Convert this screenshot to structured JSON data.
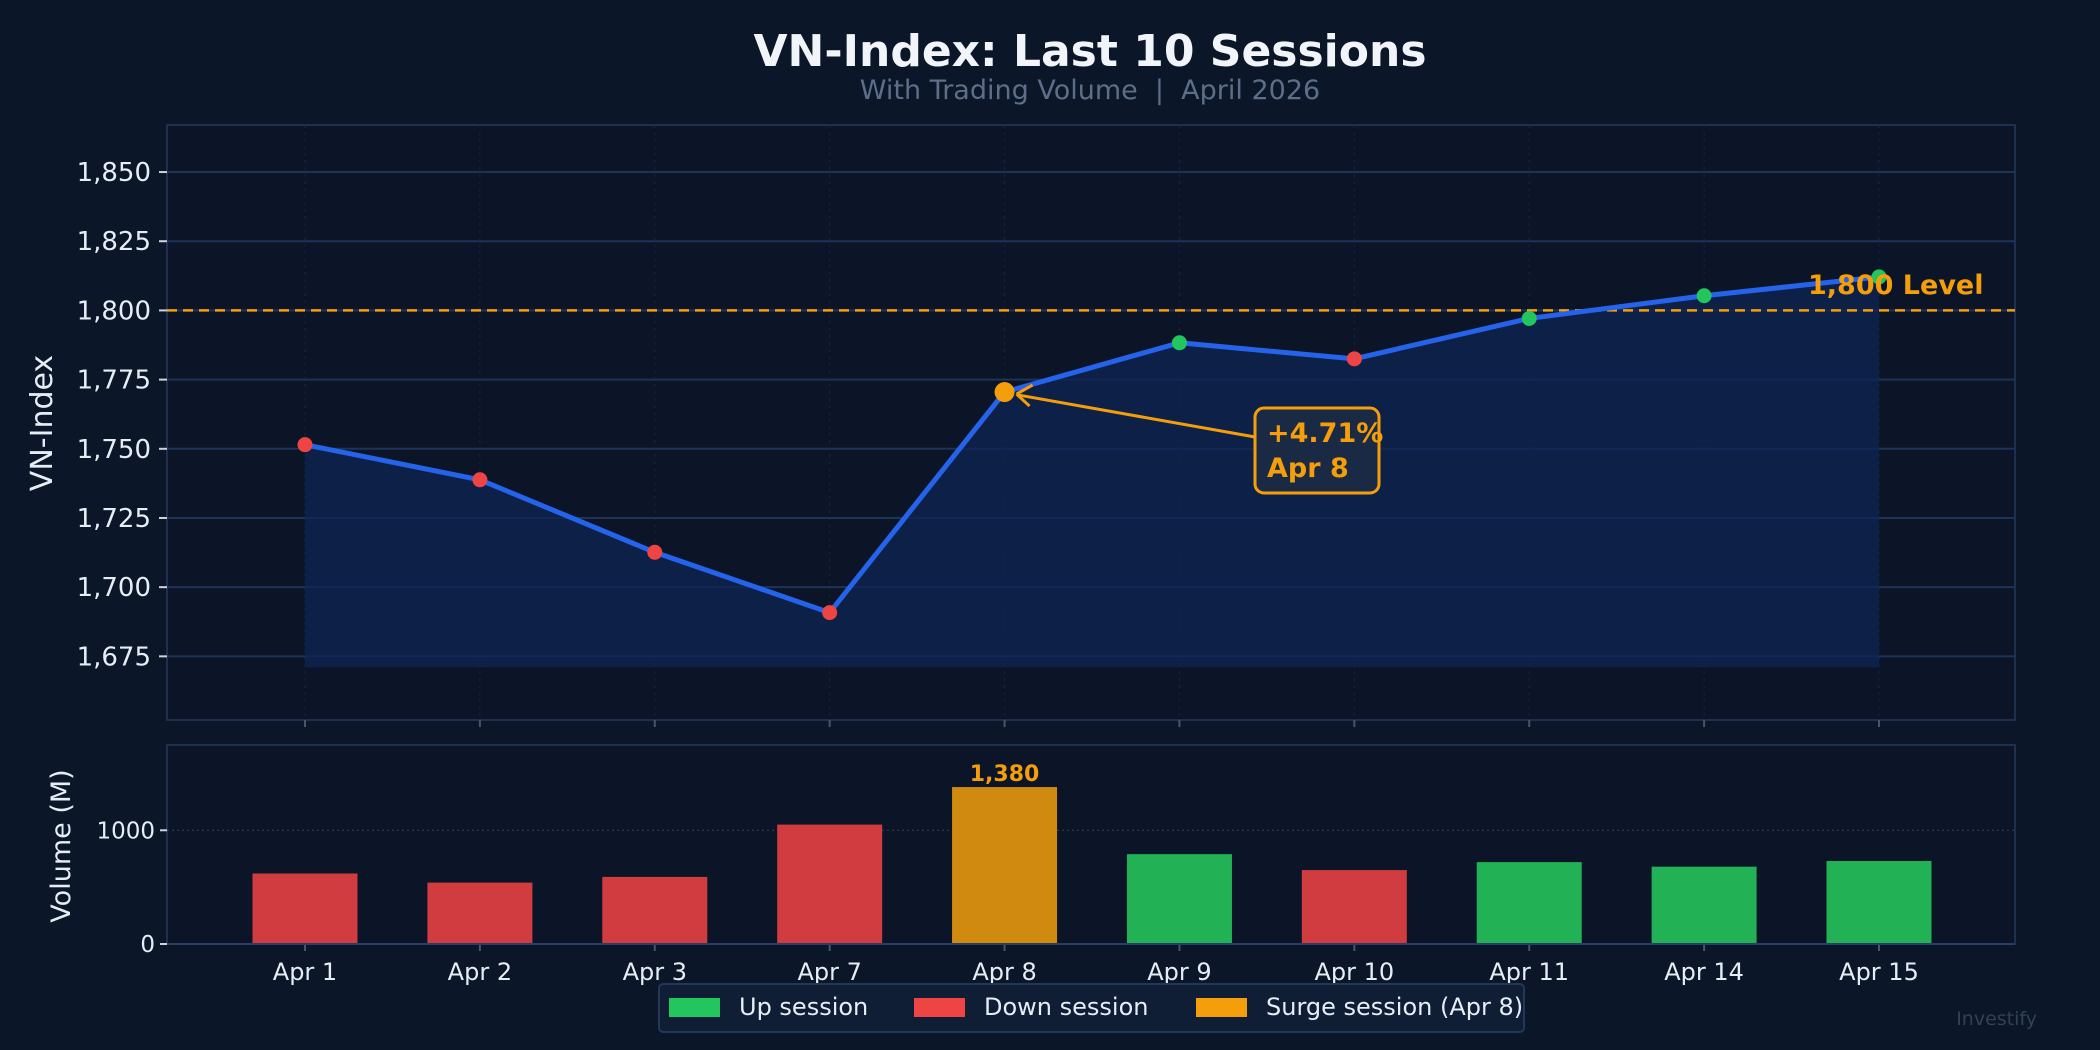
{
  "colors": {
    "background": "#0b1628",
    "line": "#2563eb",
    "up": "#22c55e",
    "down": "#ef4444",
    "surge": "#f59e0b",
    "grid": "#1e3358",
    "text": "#e6edf5",
    "subtitle": "#64748b"
  },
  "chart_data": [
    {
      "type": "line",
      "title": "VN-Index: Last 10 Sessions",
      "subtitle": "With Trading Volume  |  April 2026",
      "xlabel": "",
      "ylabel": "VN-Index",
      "categories": [
        "Apr 1",
        "Apr 2",
        "Apr 3",
        "Apr 7",
        "Apr 8",
        "Apr 9",
        "Apr 10",
        "Apr 11",
        "Apr 14",
        "Apr 15"
      ],
      "values": [
        1751.5,
        1738.8,
        1712.6,
        1690.8,
        1770.5,
        1788.3,
        1782.5,
        1797.1,
        1805.3,
        1812.1
      ],
      "marker_type": [
        "down",
        "down",
        "down",
        "down",
        "surge",
        "up",
        "down",
        "up",
        "up",
        "up"
      ],
      "ylim": [
        1652,
        1867
      ],
      "yticks": [
        1675,
        1700,
        1725,
        1750,
        1775,
        1800,
        1825,
        1850
      ],
      "ytick_labels": [
        "1,675",
        "1,700",
        "1,725",
        "1,750",
        "1,775",
        "1,800",
        "1,825",
        "1,850"
      ],
      "fill_baseline": 1671,
      "grid": true,
      "reference_line": {
        "value": 1800,
        "label": "1,800 Level"
      },
      "annotation": {
        "line1": "+4.71%",
        "line2": "Apr 8",
        "target": "Apr 8"
      }
    },
    {
      "type": "bar",
      "xlabel": "",
      "ylabel": "Volume (M)",
      "categories": [
        "Apr 1",
        "Apr 2",
        "Apr 3",
        "Apr 7",
        "Apr 8",
        "Apr 9",
        "Apr 10",
        "Apr 11",
        "Apr 14",
        "Apr 15"
      ],
      "values": [
        620,
        540,
        590,
        1050,
        1380,
        790,
        650,
        720,
        680,
        730
      ],
      "bar_type": [
        "down",
        "down",
        "down",
        "down",
        "surge",
        "up",
        "down",
        "up",
        "up",
        "up"
      ],
      "ylim": [
        0,
        1750
      ],
      "yticks": [
        0,
        1000
      ],
      "ytick_labels": [
        "0",
        "1000"
      ],
      "data_label": {
        "category": "Apr 8",
        "text": "1,380"
      },
      "grid": true,
      "legend": {
        "placement": "bottom-center",
        "entries": [
          {
            "key": "up",
            "label": "Up session"
          },
          {
            "key": "down",
            "label": "Down session"
          },
          {
            "key": "surge",
            "label": "Surge session (Apr 8)"
          }
        ]
      }
    }
  ],
  "watermark": "Investify"
}
